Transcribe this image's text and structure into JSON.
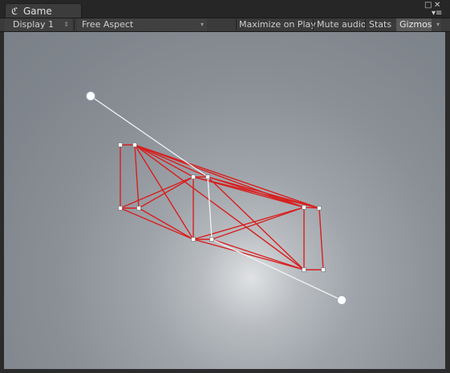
{
  "window": {
    "tab_icon": "unity-game-icon",
    "tab_label": "Game",
    "lock_icon": "□",
    "close_icon": "✕",
    "menu_icon": "▾≡"
  },
  "toolbar": {
    "display": "Display 1",
    "aspect": "Free Aspect",
    "maximize": "Maximize on Play",
    "mute": "Mute audio",
    "stats": "Stats",
    "gizmos": "Gizmos"
  },
  "colors": {
    "wire": "#d81e1e",
    "node": "#ffffff",
    "ray": "#f2f2f2"
  }
}
